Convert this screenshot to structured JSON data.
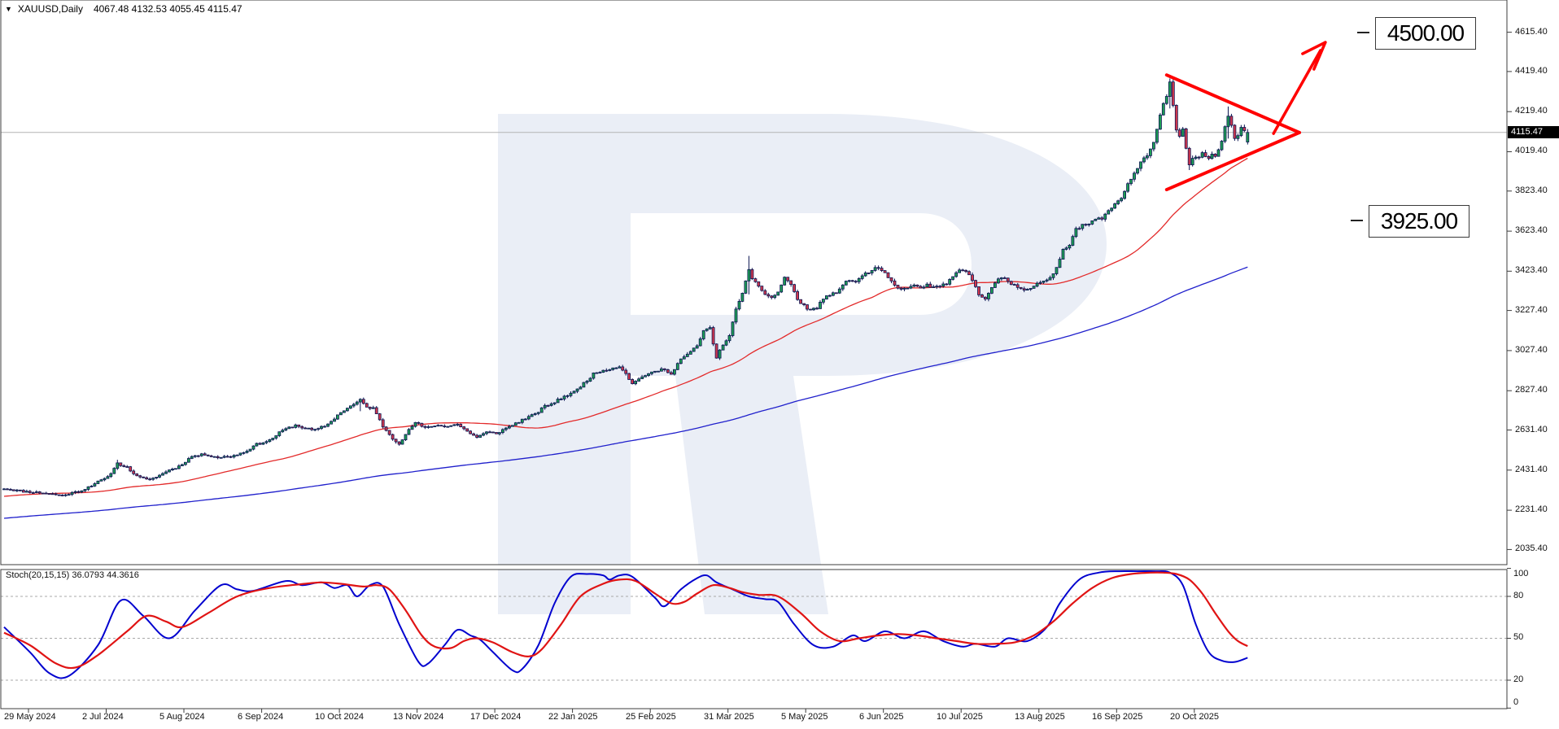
{
  "header": {
    "symbol": "XAUUSD,Daily",
    "ohlc_text": "4067.48 4132.53 4055.45 4115.47"
  },
  "icons": {
    "symbol_dropdown": "▼"
  },
  "price_tag": "4115.47",
  "annotations": {
    "upper_target": "4500.00",
    "lower_target": "3925.00"
  },
  "indicator_panel": {
    "label": "Stoch(20,15,15) 36.0793 44.3616",
    "axis_labels": [
      "100",
      "80",
      "50",
      "20",
      "0"
    ]
  },
  "price_axis_labels": [
    "4615.40",
    "4419.40",
    "4219.40",
    "4019.40",
    "3823.40",
    "3623.40",
    "3423.40",
    "3227.40",
    "3027.40",
    "2827.40",
    "2631.40",
    "2431.40",
    "2231.40",
    "2035.40"
  ],
  "colors": {
    "bull": "#1d9e54",
    "bear": "#d2374d",
    "candle_outline": "#0b1552",
    "ma_fast": "#e32a2a",
    "ma_slow": "#2020cc",
    "stoch_main": "#0202cf",
    "stoch_signal": "#e01414",
    "annotation_red": "#ff0000",
    "watermark": "#eaeef6",
    "grid_line": "#b3b3b3",
    "panel_border": "#3c3c3c",
    "tag_bg": "#000000",
    "tag_text": "#ffffff"
  },
  "chart_data": {
    "type": "candlestick",
    "title": "XAUUSD, Daily",
    "symbol": "XAUUSD",
    "timeframe": "Daily",
    "last_bar": {
      "open": 4067.48,
      "high": 4132.53,
      "low": 4055.45,
      "close": 4115.47
    },
    "y_axis": {
      "labels": [
        4615.4,
        4419.4,
        4219.4,
        4019.4,
        3823.4,
        3623.4,
        3423.4,
        3227.4,
        3027.4,
        2827.4,
        2631.4,
        2431.4,
        2231.4,
        2035.4
      ],
      "range": [
        2035,
        4660
      ]
    },
    "x_axis_labels": [
      {
        "label": "29 May 2024",
        "td": 0
      },
      {
        "label": "2 Jul 2024",
        "td": 24
      },
      {
        "label": "5 Aug 2024",
        "td": 48
      },
      {
        "label": "6 Sep 2024",
        "td": 72
      },
      {
        "label": "10 Oct 2024",
        "td": 96
      },
      {
        "label": "13 Nov 2024",
        "td": 120
      },
      {
        "label": "17 Dec 2024",
        "td": 144
      },
      {
        "label": "22 Jan 2025",
        "td": 168
      },
      {
        "label": "25 Feb 2025",
        "td": 192
      },
      {
        "label": "31 Mar 2025",
        "td": 216
      },
      {
        "label": "5 May 2025",
        "td": 240
      },
      {
        "label": "6 Jun 2025",
        "td": 264
      },
      {
        "label": "10 Jul 2025",
        "td": 288
      },
      {
        "label": "13 Aug 2025",
        "td": 312
      },
      {
        "label": "16 Sep 2025",
        "td": 336
      },
      {
        "label": "20 Oct 2025",
        "td": 360
      }
    ],
    "price_waypoints": [
      [
        0,
        2340
      ],
      [
        6,
        2325
      ],
      [
        12,
        2318
      ],
      [
        18,
        2305
      ],
      [
        24,
        2330
      ],
      [
        28,
        2365
      ],
      [
        32,
        2395
      ],
      [
        35,
        2465
      ],
      [
        38,
        2445
      ],
      [
        41,
        2400
      ],
      [
        44,
        2385
      ],
      [
        47,
        2395
      ],
      [
        50,
        2425
      ],
      [
        54,
        2450
      ],
      [
        58,
        2500
      ],
      [
        62,
        2510
      ],
      [
        66,
        2495
      ],
      [
        70,
        2500
      ],
      [
        74,
        2520
      ],
      [
        78,
        2560
      ],
      [
        82,
        2580
      ],
      [
        86,
        2630
      ],
      [
        90,
        2655
      ],
      [
        93,
        2640
      ],
      [
        96,
        2630
      ],
      [
        100,
        2660
      ],
      [
        104,
        2720
      ],
      [
        107,
        2750
      ],
      [
        110,
        2780
      ],
      [
        112,
        2745
      ],
      [
        114,
        2740
      ],
      [
        117,
        2650
      ],
      [
        120,
        2590
      ],
      [
        122,
        2565
      ],
      [
        125,
        2630
      ],
      [
        127,
        2670
      ],
      [
        130,
        2640
      ],
      [
        133,
        2655
      ],
      [
        136,
        2650
      ],
      [
        140,
        2660
      ],
      [
        143,
        2625
      ],
      [
        146,
        2595
      ],
      [
        149,
        2620
      ],
      [
        152,
        2615
      ],
      [
        155,
        2640
      ],
      [
        158,
        2665
      ],
      [
        161,
        2690
      ],
      [
        164,
        2710
      ],
      [
        167,
        2750
      ],
      [
        170,
        2770
      ],
      [
        173,
        2800
      ],
      [
        176,
        2820
      ],
      [
        179,
        2865
      ],
      [
        182,
        2910
      ],
      [
        185,
        2930
      ],
      [
        188,
        2940
      ],
      [
        190,
        2950
      ],
      [
        192,
        2915
      ],
      [
        194,
        2860
      ],
      [
        197,
        2900
      ],
      [
        200,
        2915
      ],
      [
        203,
        2935
      ],
      [
        206,
        2915
      ],
      [
        209,
        2985
      ],
      [
        212,
        3020
      ],
      [
        214,
        3050
      ],
      [
        216,
        3125
      ],
      [
        218,
        3140
      ],
      [
        220,
        2990
      ],
      [
        222,
        3060
      ],
      [
        224,
        3100
      ],
      [
        226,
        3230
      ],
      [
        228,
        3320
      ],
      [
        230,
        3425
      ],
      [
        231,
        3380
      ],
      [
        233,
        3350
      ],
      [
        235,
        3310
      ],
      [
        237,
        3290
      ],
      [
        239,
        3320
      ],
      [
        241,
        3390
      ],
      [
        243,
        3360
      ],
      [
        245,
        3280
      ],
      [
        247,
        3250
      ],
      [
        249,
        3230
      ],
      [
        251,
        3240
      ],
      [
        253,
        3290
      ],
      [
        255,
        3300
      ],
      [
        257,
        3320
      ],
      [
        259,
        3355
      ],
      [
        261,
        3380
      ],
      [
        263,
        3370
      ],
      [
        265,
        3400
      ],
      [
        267,
        3420
      ],
      [
        269,
        3435
      ],
      [
        271,
        3430
      ],
      [
        273,
        3390
      ],
      [
        275,
        3350
      ],
      [
        277,
        3330
      ],
      [
        279,
        3345
      ],
      [
        281,
        3350
      ],
      [
        283,
        3340
      ],
      [
        285,
        3355
      ],
      [
        287,
        3340
      ],
      [
        289,
        3350
      ],
      [
        291,
        3365
      ],
      [
        293,
        3390
      ],
      [
        295,
        3430
      ],
      [
        297,
        3420
      ],
      [
        299,
        3380
      ],
      [
        301,
        3310
      ],
      [
        303,
        3290
      ],
      [
        305,
        3340
      ],
      [
        307,
        3380
      ],
      [
        309,
        3390
      ],
      [
        311,
        3360
      ],
      [
        313,
        3345
      ],
      [
        315,
        3335
      ],
      [
        317,
        3340
      ],
      [
        319,
        3360
      ],
      [
        321,
        3370
      ],
      [
        323,
        3385
      ],
      [
        325,
        3445
      ],
      [
        327,
        3530
      ],
      [
        329,
        3560
      ],
      [
        331,
        3635
      ],
      [
        333,
        3650
      ],
      [
        335,
        3660
      ],
      [
        337,
        3680
      ],
      [
        339,
        3690
      ],
      [
        341,
        3720
      ],
      [
        343,
        3760
      ],
      [
        345,
        3790
      ],
      [
        347,
        3860
      ],
      [
        349,
        3910
      ],
      [
        351,
        3970
      ],
      [
        353,
        4000
      ],
      [
        355,
        4060
      ],
      [
        357,
        4210
      ],
      [
        359,
        4300
      ],
      [
        360,
        4360
      ],
      [
        361,
        4250
      ],
      [
        362,
        4120
      ],
      [
        363,
        4090
      ],
      [
        364,
        4130
      ],
      [
        365,
        4040
      ],
      [
        366,
        3950
      ],
      [
        367,
        3980
      ],
      [
        368,
        4000
      ],
      [
        369,
        3990
      ],
      [
        370,
        4010
      ],
      [
        371,
        3995
      ],
      [
        372,
        3985
      ],
      [
        373,
        4000
      ],
      [
        374,
        3995
      ],
      [
        376,
        4070
      ],
      [
        377,
        4140
      ],
      [
        378,
        4200
      ],
      [
        379,
        4150
      ],
      [
        380,
        4080
      ],
      [
        381,
        4095
      ],
      [
        382,
        4140
      ],
      [
        383,
        4120
      ],
      [
        384,
        4115.47
      ]
    ],
    "wick_overrides": [
      [
        35,
        2483,
        2432
      ],
      [
        110,
        2790,
        2725
      ],
      [
        230,
        3500,
        3308
      ],
      [
        360,
        4385,
        4235
      ],
      [
        366,
        4012,
        3928
      ],
      [
        378,
        4245,
        4085
      ]
    ],
    "triangle_pattern": {
      "upper_line": [
        [
          359,
          4402
        ],
        [
          400,
          4115
        ]
      ],
      "lower_line": [
        [
          359,
          3830
        ],
        [
          400,
          4115
        ]
      ]
    },
    "arrow": {
      "from": [
        392,
        4110
      ],
      "to": [
        408,
        4565
      ]
    },
    "target_levels": {
      "upper": 4500.0,
      "lower": 3925.0
    },
    "stochastic": {
      "parameters": "20,15,15",
      "current_main": 36.0793,
      "current_signal": 44.3616,
      "levels": [
        80,
        50,
        20
      ],
      "main_waypoints": [
        [
          0,
          58
        ],
        [
          8,
          40
        ],
        [
          14,
          25
        ],
        [
          20,
          23
        ],
        [
          29,
          45
        ],
        [
          36,
          77
        ],
        [
          43,
          66
        ],
        [
          51,
          50
        ],
        [
          59,
          70
        ],
        [
          67,
          88
        ],
        [
          72,
          85
        ],
        [
          77,
          84
        ],
        [
          87,
          91
        ],
        [
          92,
          88
        ],
        [
          98,
          90
        ],
        [
          102,
          86
        ],
        [
          106,
          88
        ],
        [
          109,
          80
        ],
        [
          113,
          88
        ],
        [
          117,
          87
        ],
        [
          122,
          60
        ],
        [
          128,
          33
        ],
        [
          131,
          32
        ],
        [
          136,
          45
        ],
        [
          140,
          56
        ],
        [
          144,
          52
        ],
        [
          147,
          49
        ],
        [
          151,
          40
        ],
        [
          157,
          27
        ],
        [
          160,
          28
        ],
        [
          165,
          45
        ],
        [
          170,
          75
        ],
        [
          175,
          94
        ],
        [
          180,
          96
        ],
        [
          185,
          95
        ],
        [
          187,
          92
        ],
        [
          190,
          95
        ],
        [
          194,
          94
        ],
        [
          201,
          79
        ],
        [
          204,
          73
        ],
        [
          209,
          85
        ],
        [
          214,
          93
        ],
        [
          217,
          95
        ],
        [
          220,
          90
        ],
        [
          225,
          85
        ],
        [
          230,
          80
        ],
        [
          235,
          78
        ],
        [
          239,
          76
        ],
        [
          244,
          60
        ],
        [
          250,
          45
        ],
        [
          256,
          44
        ],
        [
          262,
          52
        ],
        [
          266,
          48
        ],
        [
          272,
          55
        ],
        [
          278,
          50
        ],
        [
          284,
          55
        ],
        [
          290,
          48
        ],
        [
          296,
          44
        ],
        [
          300,
          46
        ],
        [
          306,
          44
        ],
        [
          310,
          50
        ],
        [
          316,
          48
        ],
        [
          322,
          58
        ],
        [
          326,
          75
        ],
        [
          332,
          92
        ],
        [
          338,
          97
        ],
        [
          344,
          98
        ],
        [
          350,
          98
        ],
        [
          356,
          98
        ],
        [
          360,
          97
        ],
        [
          364,
          88
        ],
        [
          368,
          60
        ],
        [
          372,
          40
        ],
        [
          376,
          34
        ],
        [
          380,
          33
        ],
        [
          384,
          36.08
        ]
      ],
      "signal_waypoints": [
        [
          0,
          54
        ],
        [
          8,
          45
        ],
        [
          16,
          32
        ],
        [
          22,
          29
        ],
        [
          29,
          38
        ],
        [
          38,
          55
        ],
        [
          44,
          66
        ],
        [
          50,
          62
        ],
        [
          55,
          58
        ],
        [
          63,
          68
        ],
        [
          72,
          80
        ],
        [
          82,
          86
        ],
        [
          93,
          89
        ],
        [
          98,
          90
        ],
        [
          104,
          89
        ],
        [
          111,
          87
        ],
        [
          115,
          88
        ],
        [
          119,
          85
        ],
        [
          124,
          70
        ],
        [
          129,
          52
        ],
        [
          133,
          44
        ],
        [
          138,
          43
        ],
        [
          142,
          48
        ],
        [
          146,
          50
        ],
        [
          151,
          47
        ],
        [
          157,
          40
        ],
        [
          162,
          37
        ],
        [
          166,
          42
        ],
        [
          172,
          60
        ],
        [
          178,
          80
        ],
        [
          185,
          89
        ],
        [
          190,
          92
        ],
        [
          195,
          91
        ],
        [
          201,
          82
        ],
        [
          206,
          75
        ],
        [
          210,
          76
        ],
        [
          214,
          82
        ],
        [
          219,
          88
        ],
        [
          224,
          86
        ],
        [
          228,
          83
        ],
        [
          233,
          81
        ],
        [
          239,
          80
        ],
        [
          246,
          68
        ],
        [
          252,
          55
        ],
        [
          258,
          48
        ],
        [
          264,
          50
        ],
        [
          270,
          52
        ],
        [
          276,
          53
        ],
        [
          282,
          52
        ],
        [
          288,
          50
        ],
        [
          294,
          48
        ],
        [
          300,
          46
        ],
        [
          306,
          46
        ],
        [
          312,
          47
        ],
        [
          318,
          52
        ],
        [
          324,
          62
        ],
        [
          330,
          75
        ],
        [
          336,
          86
        ],
        [
          342,
          93
        ],
        [
          348,
          96
        ],
        [
          354,
          97
        ],
        [
          358,
          97
        ],
        [
          362,
          96
        ],
        [
          366,
          92
        ],
        [
          370,
          82
        ],
        [
          374,
          68
        ],
        [
          378,
          55
        ],
        [
          381,
          48
        ],
        [
          384,
          44.36
        ]
      ]
    }
  }
}
